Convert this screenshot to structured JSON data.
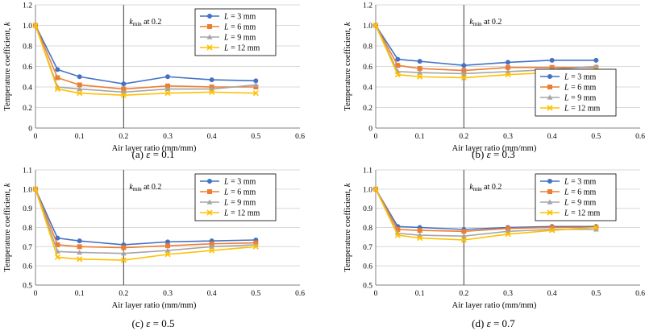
{
  "figure": {
    "name": "temperature-coefficient-panels"
  },
  "colors": {
    "L3": "#4472C4",
    "L6": "#ED7D31",
    "L9": "#A5A5A5",
    "L12": "#FFC000",
    "grid": "#d9d9d9",
    "axis": "#808080",
    "vline": "#404040"
  },
  "chart_data": [
    {
      "type": "line",
      "caption_prefix": "(a)",
      "caption_eps": "ε",
      "caption_value": "= 0.1",
      "xlabel": "Air layer ratio (mm/mm)",
      "ylabel": "Temperature coefficient, k",
      "xlim": [
        0,
        0.6
      ],
      "ylim": [
        0,
        1.2
      ],
      "xticks": [
        "0",
        "0.1",
        "0.2",
        "0.3",
        "0.4",
        "0.5",
        "0.6"
      ],
      "yticks": [
        "0",
        "0.2",
        "0.4",
        "0.6",
        "0.8",
        "1.0",
        "1.2"
      ],
      "vline_x": 0.2,
      "annotation_k": "k",
      "annotation_sub": "min",
      "annotation_rest": " at 0.2",
      "legend_position": "top-right",
      "x": [
        0,
        0.05,
        0.1,
        0.2,
        0.3,
        0.4,
        0.5
      ],
      "series": [
        {
          "name": "L = 3 mm",
          "values": [
            1.0,
            0.57,
            0.5,
            0.43,
            0.5,
            0.47,
            0.46
          ]
        },
        {
          "name": "L = 6 mm",
          "values": [
            1.0,
            0.49,
            0.42,
            0.38,
            0.41,
            0.4,
            0.4
          ]
        },
        {
          "name": "L = 9 mm",
          "values": [
            1.0,
            0.4,
            0.38,
            0.35,
            0.38,
            0.38,
            0.42
          ]
        },
        {
          "name": "L = 12 mm",
          "values": [
            1.0,
            0.38,
            0.34,
            0.32,
            0.34,
            0.35,
            0.34
          ]
        }
      ]
    },
    {
      "type": "line",
      "caption_prefix": "(b)",
      "caption_eps": "ε",
      "caption_value": "= 0.3",
      "xlabel": "Air layer ratio (mm/mm)",
      "ylabel": "Temperature coefficient, k",
      "xlim": [
        0,
        0.6
      ],
      "ylim": [
        0,
        1.2
      ],
      "xticks": [
        "0",
        "0.1",
        "0.2",
        "0.3",
        "0.4",
        "0.5",
        "0.6"
      ],
      "yticks": [
        "0",
        "0.2",
        "0.4",
        "0.6",
        "0.8",
        "1.0",
        "1.2"
      ],
      "vline_x": 0.2,
      "annotation_k": "k",
      "annotation_sub": "min",
      "annotation_rest": " at 0.2",
      "legend_position": "bottom-right",
      "x": [
        0,
        0.05,
        0.1,
        0.2,
        0.3,
        0.4,
        0.5
      ],
      "series": [
        {
          "name": "L = 3 mm",
          "values": [
            1.0,
            0.67,
            0.65,
            0.61,
            0.64,
            0.66,
            0.66
          ]
        },
        {
          "name": "L = 6 mm",
          "values": [
            1.0,
            0.61,
            0.58,
            0.56,
            0.59,
            0.59,
            0.59
          ]
        },
        {
          "name": "L = 9 mm",
          "values": [
            1.0,
            0.55,
            0.54,
            0.53,
            0.55,
            0.57,
            0.6
          ]
        },
        {
          "name": "L = 12 mm",
          "values": [
            1.0,
            0.52,
            0.5,
            0.49,
            0.52,
            0.54,
            0.56
          ]
        }
      ]
    },
    {
      "type": "line",
      "caption_prefix": "(c)",
      "caption_eps": "ε",
      "caption_value": "= 0.5",
      "xlabel": "Air layer ratio (mm/mm)",
      "ylabel": "Temperature coefficient, k",
      "xlim": [
        0,
        0.6
      ],
      "ylim": [
        0.5,
        1.1
      ],
      "xticks": [
        "0",
        "0.1",
        "0.2",
        "0.3",
        "0.4",
        "0.5",
        "0.6"
      ],
      "yticks": [
        "0.5",
        "0.6",
        "0.7",
        "0.8",
        "0.9",
        "1.0",
        "1.1"
      ],
      "vline_x": 0.2,
      "annotation_k": "k",
      "annotation_sub": "min",
      "annotation_rest": " at 0.2",
      "legend_position": "top-right",
      "x": [
        0,
        0.05,
        0.1,
        0.2,
        0.3,
        0.4,
        0.5
      ],
      "series": [
        {
          "name": "L = 3 mm",
          "values": [
            1.0,
            0.745,
            0.73,
            0.71,
            0.725,
            0.73,
            0.735
          ]
        },
        {
          "name": "L = 6 mm",
          "values": [
            1.0,
            0.71,
            0.7,
            0.695,
            0.705,
            0.715,
            0.72
          ]
        },
        {
          "name": "L = 9 mm",
          "values": [
            1.0,
            0.675,
            0.67,
            0.665,
            0.68,
            0.7,
            0.71
          ]
        },
        {
          "name": "L = 12 mm",
          "values": [
            1.0,
            0.645,
            0.635,
            0.63,
            0.66,
            0.68,
            0.7
          ]
        }
      ]
    },
    {
      "type": "line",
      "caption_prefix": "(d)",
      "caption_eps": "ε",
      "caption_value": "= 0.7",
      "xlabel": "Air layer ratio (mm/mm)",
      "ylabel": "Temperature coefficient, k",
      "xlim": [
        0,
        0.6
      ],
      "ylim": [
        0.5,
        1.1
      ],
      "xticks": [
        "0",
        "0.1",
        "0.2",
        "0.3",
        "0.4",
        "0.5",
        "0.6"
      ],
      "yticks": [
        "0.5",
        "0.6",
        "0.7",
        "0.8",
        "0.9",
        "1.0",
        "1.1"
      ],
      "vline_x": 0.2,
      "annotation_k": "k",
      "annotation_sub": "min",
      "annotation_rest": " at 0.2",
      "legend_position": "top-right",
      "x": [
        0,
        0.05,
        0.1,
        0.2,
        0.3,
        0.4,
        0.5
      ],
      "series": [
        {
          "name": "L = 3 mm",
          "values": [
            1.0,
            0.805,
            0.8,
            0.79,
            0.8,
            0.805,
            0.805
          ]
        },
        {
          "name": "L = 6 mm",
          "values": [
            1.0,
            0.79,
            0.785,
            0.78,
            0.795,
            0.8,
            0.8
          ]
        },
        {
          "name": "L = 9 mm",
          "values": [
            1.0,
            0.77,
            0.76,
            0.755,
            0.78,
            0.79,
            0.79
          ]
        },
        {
          "name": "L = 12 mm",
          "values": [
            1.0,
            0.76,
            0.745,
            0.735,
            0.765,
            0.785,
            0.8
          ]
        }
      ]
    }
  ]
}
